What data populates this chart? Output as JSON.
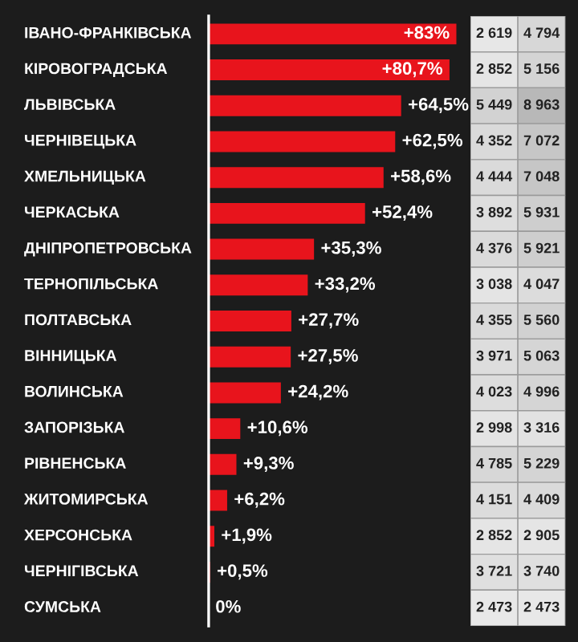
{
  "chart_data": [
    {
      "type": "bar",
      "orientation": "horizontal",
      "color": "#e8141c",
      "categories": [
        "ІВАНО-ФРАНКІВСЬКА",
        "КІРОВОГРАДСЬКА",
        "ЛЬВІВСЬКА",
        "ЧЕРНІВЕЦЬКА",
        "ХМЕЛЬНИЦЬКА",
        "ЧЕРКАСЬКА",
        "ДНІПРОПЕТРОВСЬКА",
        "ТЕРНОПІЛЬСЬКА",
        "ПОЛТАВСЬКА",
        "ВІННИЦЬКА",
        "ВОЛИНСЬКА",
        "ЗАПОРІЗЬКА",
        "РІВНЕНСЬКА",
        "ЖИТОМИРСЬКА",
        "ХЕРСОНСЬКА",
        "ЧЕРНІГІВСЬКА",
        "СУМСЬКА"
      ],
      "values": [
        83,
        80.7,
        64.5,
        62.5,
        58.6,
        52.4,
        35.3,
        33.2,
        27.7,
        27.5,
        24.2,
        10.6,
        9.3,
        6.2,
        1.9,
        0.5,
        0
      ],
      "value_labels": [
        "+83%",
        "+80,7%",
        "+64,5%",
        "+62,5%",
        "+58,6%",
        "+52,4%",
        "+35,3%",
        "+33,2%",
        "+27,7%",
        "+27,5%",
        "+24,2%",
        "+10,6%",
        "+9,3%",
        "+6,2%",
        "+1,9%",
        "+0,5%",
        "0%"
      ]
    },
    {
      "type": "heatmap",
      "categories": [
        null,
        null
      ],
      "y_categories": [
        null,
        null,
        null,
        null,
        null,
        null,
        null,
        null,
        null,
        null,
        null,
        null,
        null,
        null,
        null,
        null,
        null
      ],
      "cells": [
        [
          2619,
          4794
        ],
        [
          2852,
          5156
        ],
        [
          5449,
          8963
        ],
        [
          4352,
          7072
        ],
        [
          4444,
          7048
        ],
        [
          3892,
          5931
        ],
        [
          4376,
          5921
        ],
        [
          3038,
          4047
        ],
        [
          4355,
          5560
        ],
        [
          3971,
          5063
        ],
        [
          4023,
          4996
        ],
        [
          2998,
          3316
        ],
        [
          4785,
          5229
        ],
        [
          4151,
          4409
        ],
        [
          2852,
          2905
        ],
        [
          3721,
          3740
        ],
        [
          2473,
          2473
        ]
      ],
      "cell_labels": [
        [
          "2 619",
          "4 794"
        ],
        [
          "2 852",
          "5 156"
        ],
        [
          "5 449",
          "8 963"
        ],
        [
          "4 352",
          "7 072"
        ],
        [
          "4 444",
          "7 048"
        ],
        [
          "3 892",
          "5 931"
        ],
        [
          "4 376",
          "5 921"
        ],
        [
          "3 038",
          "4 047"
        ],
        [
          "4 355",
          "5 560"
        ],
        [
          "3 971",
          "5 063"
        ],
        [
          "4 023",
          "4 996"
        ],
        [
          "2 998",
          "3 316"
        ],
        [
          "4 785",
          "5 229"
        ],
        [
          "4 151",
          "4 409"
        ],
        [
          "2 852",
          "2 905"
        ],
        [
          "3 721",
          "3 740"
        ],
        [
          "2 473",
          "2 473"
        ]
      ]
    }
  ]
}
